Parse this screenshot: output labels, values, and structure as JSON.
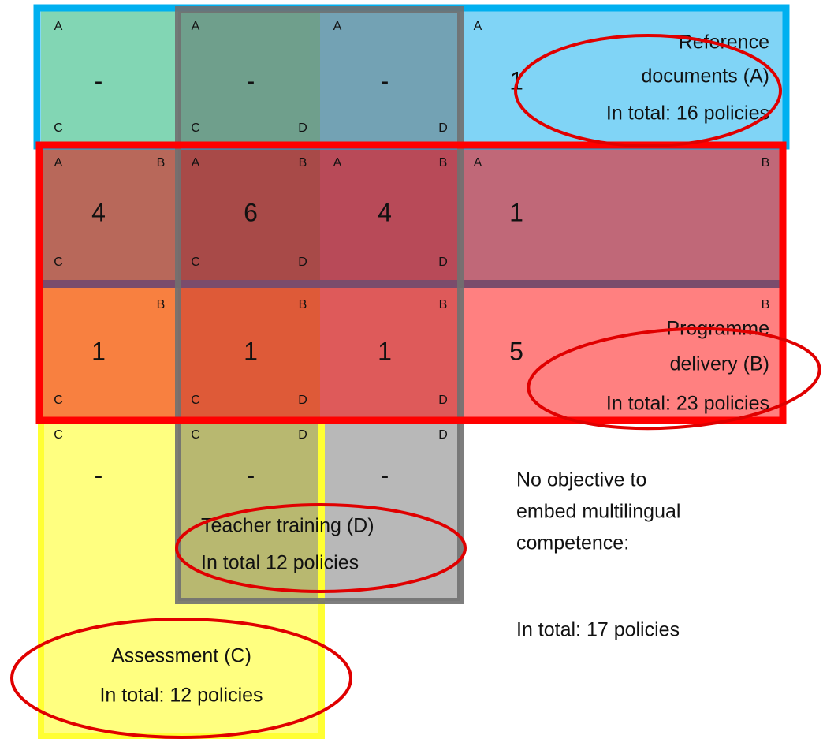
{
  "grid": [
    [
      {
        "value": "-",
        "letters": [
          "A",
          "C"
        ],
        "color": "#82d6b4"
      },
      {
        "value": "-",
        "letters": [
          "A",
          "C",
          "D"
        ],
        "color": "#6f9f8c"
      },
      {
        "value": "-",
        "letters": [
          "A",
          "D"
        ],
        "color": "#73a2b4"
      },
      {
        "value": 1,
        "letters": [
          "A"
        ],
        "color": "#80d4f6"
      }
    ],
    [
      {
        "value": 4,
        "letters": [
          "A",
          "B",
          "C"
        ],
        "color": "#b8685a"
      },
      {
        "value": 6,
        "letters": [
          "A",
          "B",
          "C",
          "D"
        ],
        "color": "#a84a48"
      },
      {
        "value": 4,
        "letters": [
          "A",
          "B",
          "D"
        ],
        "color": "#b84a58"
      },
      {
        "value": 1,
        "letters": [
          "A",
          "B"
        ],
        "color": "#c06878"
      }
    ],
    [
      {
        "value": 1,
        "letters": [
          "B",
          "C"
        ],
        "color": "#f88040"
      },
      {
        "value": 1,
        "letters": [
          "B",
          "C",
          "D"
        ],
        "color": "#de5a38"
      },
      {
        "value": 1,
        "letters": [
          "B",
          "D"
        ],
        "color": "#de5a5a"
      },
      {
        "value": 5,
        "letters": [
          "B"
        ],
        "color": "#ff8080"
      }
    ],
    [
      {
        "value": "-",
        "letters": [
          "C"
        ],
        "color": "#ffff80"
      },
      {
        "value": "-",
        "letters": [
          "C",
          "D"
        ],
        "color": "#b8b870"
      },
      {
        "value": "-",
        "letters": [
          "D"
        ],
        "color": "#b8b8b8"
      }
    ]
  ],
  "labels": {
    "reference": [
      "Reference",
      "documents (A)",
      "In total: 16 policies"
    ],
    "programme": [
      "Programme",
      "delivery (B)",
      "In total: 23 policies"
    ],
    "teacher": [
      "Teacher training (D)",
      "In total 12 policies"
    ],
    "assessment": [
      "Assessment (C)",
      "In total: 12 policies"
    ],
    "none": [
      "No objective to",
      "embed multilingual",
      "competence:",
      "In total: 17 policies"
    ]
  }
}
